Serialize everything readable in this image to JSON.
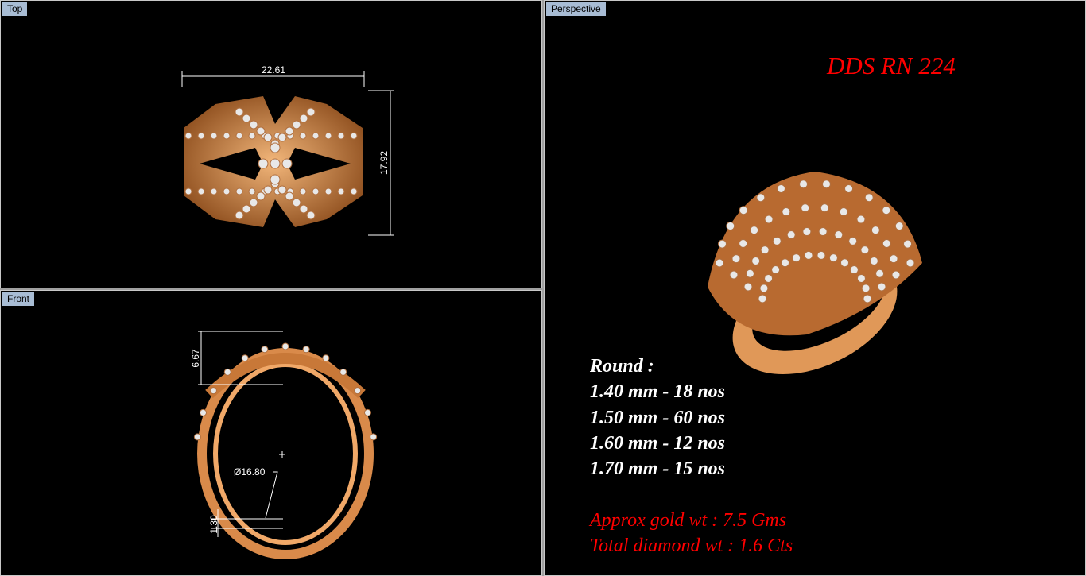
{
  "viewports": {
    "top": {
      "label": "Top",
      "dim_width": "22.61",
      "dim_height": "17.92"
    },
    "front": {
      "label": "Front",
      "dim_height": "6.67",
      "dim_diameter": "Ø16.80",
      "dim_thickness": "1.30"
    },
    "perspective": {
      "label": "Perspective",
      "title": "DDS RN 224",
      "stones_heading": "Round :",
      "stones": [
        "1.40 mm - 18 nos",
        "1.50 mm - 60 nos",
        "1.60 mm - 12 nos",
        "1.70 mm - 15 nos"
      ],
      "gold_weight": "Approx gold wt : 7.5 Gms",
      "diamond_weight": "Total diamond wt : 1.6 Cts"
    }
  },
  "colors": {
    "viewport_bg": "#000000",
    "label_bg": "#a8bcd4",
    "gold": "#d98a4a",
    "accent_text": "#ff0000"
  }
}
